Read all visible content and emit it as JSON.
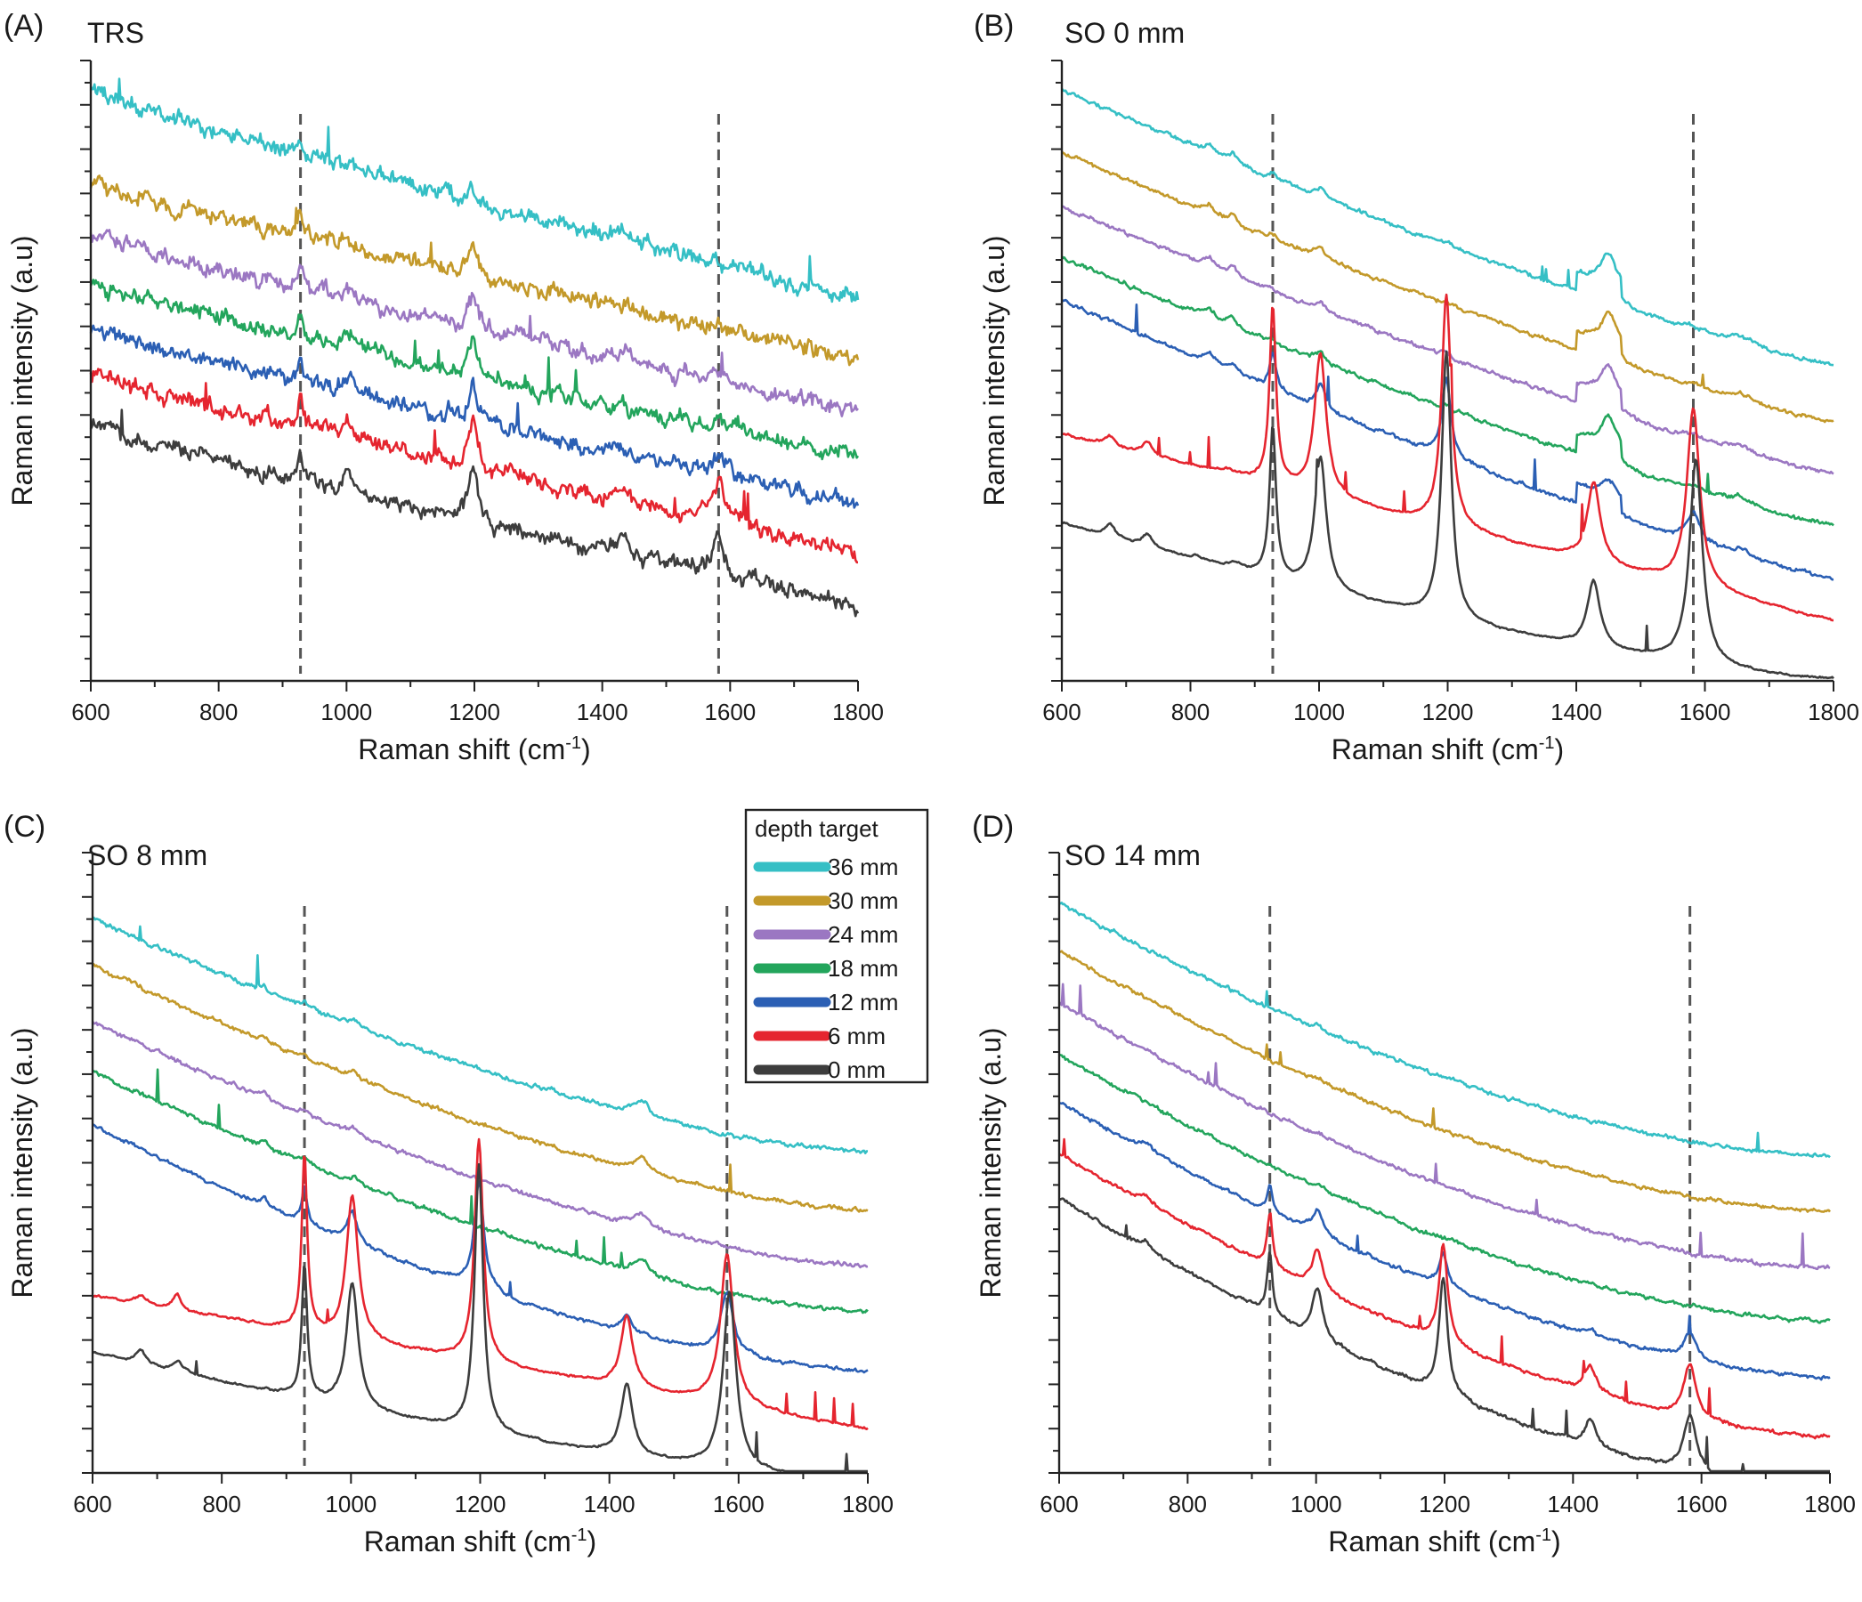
{
  "legend": {
    "title": "depth target",
    "entries": [
      {
        "label": "36 mm",
        "color": "#35bfc5"
      },
      {
        "label": "30 mm",
        "color": "#c3992a"
      },
      {
        "label": "24 mm",
        "color": "#9b77c2"
      },
      {
        "label": "18 mm",
        "color": "#23a55c"
      },
      {
        "label": "12 mm",
        "color": "#2b5fb4"
      },
      {
        "label": "6 mm",
        "color": "#e5252f"
      },
      {
        "label": "0 mm",
        "color": "#3d3d3d"
      }
    ]
  },
  "chart_data": [
    {
      "type": "line",
      "letter": "(A)",
      "title": "TRS",
      "xlabel": "Raman shift (cm",
      "xlabel_sup": "-1",
      "xlabel_end": ")",
      "ylabel": "Raman intensity (a.u)",
      "xlim": [
        600,
        1800
      ],
      "xticks": [
        600,
        800,
        1000,
        1200,
        1400,
        1600,
        1800
      ],
      "reference_lines_cm1": [
        928,
        1582
      ],
      "peaks_cm1": [
        928,
        1001,
        1198,
        1430,
        1582
      ],
      "series_order": [
        "36 mm",
        "30 mm",
        "24 mm",
        "18 mm",
        "12 mm",
        "6 mm",
        "0 mm"
      ]
    },
    {
      "type": "line",
      "letter": "(B)",
      "title": "SO 0 mm",
      "xlabel": "Raman shift (cm",
      "xlabel_sup": "-1",
      "xlabel_end": ")",
      "ylabel": "Raman intensity (a.u)",
      "xlim": [
        600,
        1800
      ],
      "xticks": [
        600,
        800,
        1000,
        1200,
        1400,
        1600,
        1800
      ],
      "reference_lines_cm1": [
        928,
        1582
      ],
      "peaks_cm1": [
        928,
        1001,
        1198,
        1430,
        1582
      ],
      "series_order": [
        "36 mm",
        "30 mm",
        "24 mm",
        "18 mm",
        "12 mm",
        "6 mm",
        "0 mm"
      ]
    },
    {
      "type": "line",
      "letter": "(C)",
      "title": "SO 8 mm",
      "xlabel": "Raman shift (cm",
      "xlabel_sup": "-1",
      "xlabel_end": ")",
      "ylabel": "Raman intensity (a.u)",
      "xlim": [
        600,
        1800
      ],
      "xticks": [
        600,
        800,
        1000,
        1200,
        1400,
        1600,
        1800
      ],
      "reference_lines_cm1": [
        928,
        1582
      ],
      "peaks_cm1": [
        928,
        1001,
        1198,
        1430,
        1582
      ],
      "series_order": [
        "36 mm",
        "30 mm",
        "24 mm",
        "18 mm",
        "12 mm",
        "6 mm",
        "0 mm"
      ]
    },
    {
      "type": "line",
      "letter": "(D)",
      "title": "SO 14 mm",
      "xlabel": "Raman shift (cm",
      "xlabel_sup": "-1",
      "xlabel_end": ")",
      "ylabel": "Raman intensity (a.u)",
      "xlim": [
        600,
        1800
      ],
      "xticks": [
        600,
        800,
        1000,
        1200,
        1400,
        1600,
        1800
      ],
      "reference_lines_cm1": [
        928,
        1582
      ],
      "peaks_cm1": [
        928,
        1001,
        1198,
        1430,
        1582
      ],
      "series_order": [
        "36 mm",
        "30 mm",
        "24 mm",
        "18 mm",
        "12 mm",
        "6 mm",
        "0 mm"
      ]
    }
  ]
}
